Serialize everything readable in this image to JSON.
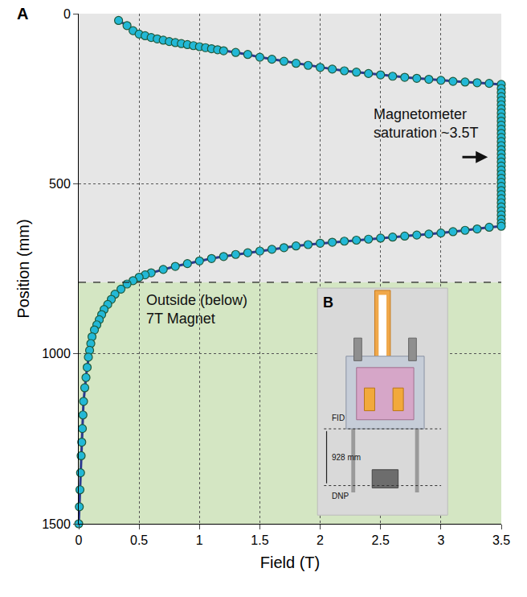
{
  "chart_data": {
    "type": "scatter",
    "panel": "A",
    "x_label": "Field (T)",
    "y_label": "Position (mm)",
    "xlim": [
      0,
      3.5
    ],
    "xticks": [
      0,
      0.5,
      1,
      1.5,
      2,
      2.5,
      3,
      3.5
    ],
    "ylim": [
      1500,
      0
    ],
    "yticks": [
      0,
      500,
      1000,
      1500
    ],
    "grid": true,
    "marker": "circle",
    "line_style": "solid",
    "color": "#2b3990",
    "marker_color": "#22b8d6",
    "x": [
      0.33,
      0.4,
      0.45,
      0.5,
      0.55,
      0.6,
      0.65,
      0.7,
      0.75,
      0.8,
      0.85,
      0.9,
      0.95,
      1.0,
      1.05,
      1.1,
      1.15,
      1.2,
      1.3,
      1.4,
      1.5,
      1.6,
      1.7,
      1.8,
      1.9,
      2.0,
      2.1,
      2.2,
      2.3,
      2.4,
      2.5,
      2.6,
      2.7,
      2.8,
      2.9,
      3.0,
      3.1,
      3.2,
      3.3,
      3.4,
      3.5,
      3.5,
      3.5,
      3.5,
      3.5,
      3.5,
      3.5,
      3.5,
      3.5,
      3.5,
      3.5,
      3.5,
      3.5,
      3.5,
      3.5,
      3.5,
      3.5,
      3.5,
      3.5,
      3.5,
      3.5,
      3.5,
      3.5,
      3.5,
      3.5,
      3.5,
      3.5,
      3.5,
      3.5,
      3.5,
      3.5,
      3.5,
      3.5,
      3.5,
      3.5,
      3.5,
      3.4,
      3.3,
      3.2,
      3.1,
      3.0,
      2.9,
      2.8,
      2.7,
      2.6,
      2.5,
      2.4,
      2.3,
      2.2,
      2.1,
      2.0,
      1.9,
      1.8,
      1.7,
      1.6,
      1.5,
      1.4,
      1.3,
      1.2,
      1.1,
      1.0,
      0.9,
      0.8,
      0.7,
      0.6,
      0.55,
      0.5,
      0.45,
      0.4,
      0.35,
      0.3,
      0.27,
      0.24,
      0.21,
      0.19,
      0.17,
      0.15,
      0.13,
      0.11,
      0.1,
      0.09,
      0.08,
      0.07,
      0.06,
      0.05,
      0.04,
      0.035,
      0.03,
      0.025,
      0.02,
      0.015,
      0.01,
      0.005,
      0
    ],
    "values": [
      20,
      35,
      50,
      60,
      65,
      70,
      74,
      78,
      82,
      85,
      88,
      91,
      94,
      97,
      100,
      103,
      106,
      109,
      114,
      120,
      128,
      134,
      140,
      146,
      152,
      158,
      163,
      168,
      172,
      176,
      180,
      184,
      187,
      190,
      193,
      196,
      199,
      201,
      203,
      205,
      208,
      220,
      232,
      244,
      256,
      268,
      280,
      292,
      304,
      316,
      328,
      340,
      352,
      364,
      376,
      388,
      400,
      412,
      424,
      436,
      448,
      460,
      472,
      484,
      496,
      508,
      520,
      532,
      544,
      556,
      568,
      580,
      592,
      604,
      616,
      625,
      628,
      633,
      637,
      641,
      645,
      648,
      651,
      654,
      657,
      660,
      663,
      666,
      669,
      672,
      675,
      679,
      683,
      688,
      693,
      698,
      703,
      708,
      714,
      720,
      727,
      735,
      743,
      752,
      762,
      768,
      775,
      785,
      795,
      810,
      825,
      840,
      855,
      870,
      885,
      900,
      915,
      930,
      950,
      970,
      990,
      1010,
      1040,
      1070,
      1100,
      1140,
      1180,
      1220,
      1260,
      1300,
      1350,
      1400,
      1450,
      1500
    ],
    "regions": [
      {
        "ylim": [
          0,
          790
        ],
        "color": "#e6e6e6"
      },
      {
        "ylim": [
          790,
          1500
        ],
        "color": "#d4e6c3"
      }
    ],
    "magnet_edge": 790,
    "annotations": [
      [
        "Magnetometer",
        "saturation ~3.5T"
      ],
      [
        "Outside (below)",
        "7T Magnet"
      ]
    ],
    "inset": {
      "label": "B",
      "top_line": "FID",
      "distance": "928 mm",
      "bottom_line": "DNP"
    }
  }
}
